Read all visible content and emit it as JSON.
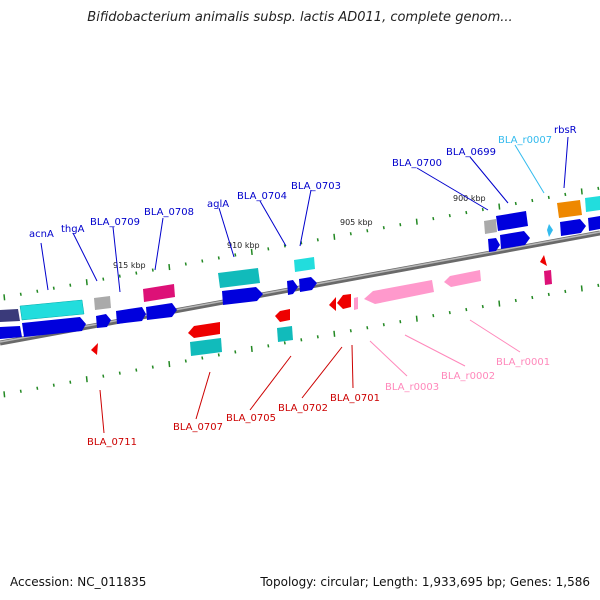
{
  "title": "Bifidobacterium animalis subsp. lactis AD011, complete genom...",
  "footer": {
    "accession": "Accession: NC_011835",
    "topology": "Topology: circular; Length: 1,933,695 bp; Genes: 1,586"
  },
  "kbp_labels": [
    "915 kbp",
    "910 kbp",
    "905 kbp",
    "900 kbp"
  ],
  "colors": {
    "forward_label": "#0000cc",
    "reverse_label": "#cc0000",
    "rrna_label": "#ff88bb",
    "trna_label": "#33bbee",
    "backbone": "#888888",
    "tick": "#228822"
  },
  "genes_forward": [
    {
      "label": "acnA",
      "label_color": "#0000cc"
    },
    {
      "label": "thgA",
      "label_color": "#0000cc"
    },
    {
      "label": "BLA_0709",
      "label_color": "#0000cc"
    },
    {
      "label": "BLA_0708",
      "label_color": "#0000cc"
    },
    {
      "label": "aglA",
      "label_color": "#0000cc"
    },
    {
      "label": "BLA_0704",
      "label_color": "#0000cc"
    },
    {
      "label": "BLA_0703",
      "label_color": "#0000cc"
    },
    {
      "label": "BLA_0700",
      "label_color": "#0000cc"
    },
    {
      "label": "BLA_0699",
      "label_color": "#0000cc"
    },
    {
      "label": "BLA_r0007",
      "label_color": "#33bbee"
    },
    {
      "label": "rbsR",
      "label_color": "#0000cc"
    }
  ],
  "genes_reverse": [
    {
      "label": "BLA_0711",
      "label_color": "#cc0000"
    },
    {
      "label": "BLA_0707",
      "label_color": "#cc0000"
    },
    {
      "label": "BLA_0705",
      "label_color": "#cc0000"
    },
    {
      "label": "BLA_0702",
      "label_color": "#cc0000"
    },
    {
      "label": "BLA_0701",
      "label_color": "#cc0000"
    },
    {
      "label": "BLA_r0003",
      "label_color": "#ff88bb"
    },
    {
      "label": "BLA_r0002",
      "label_color": "#ff88bb"
    },
    {
      "label": "BLA_r0001",
      "label_color": "#ff88bb"
    }
  ]
}
